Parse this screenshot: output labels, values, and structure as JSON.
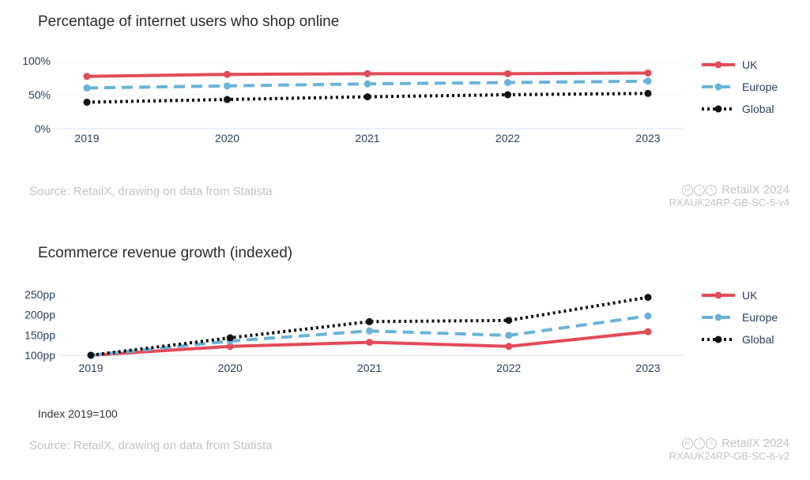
{
  "colors": {
    "uk": "#e34a58",
    "europe": "#6bb3d9",
    "global": "#111111"
  },
  "charts": [
    {
      "title": "Percentage of internet users who shop online",
      "source": "Source: RetailX, drawing on data from Statista",
      "brand": "RetailX 2024",
      "code": "RXAUK24RP-GB-SC-5-v4",
      "cc_icons": [
        "cc",
        "i",
        "="
      ]
    },
    {
      "title": "Ecommerce revenue growth (indexed)",
      "note": "Index 2019=100",
      "source": "Source: RetailX, drawing on data from Statista",
      "brand": "RetailX 2024",
      "code": "RXAUK24RP-GB-SC-6-v2",
      "cc_icons": [
        "cc",
        "i",
        "="
      ]
    }
  ],
  "chart_data": [
    {
      "type": "line",
      "title": "Percentage of internet users who shop online",
      "categories": [
        "2019",
        "2020",
        "2021",
        "2022",
        "2023"
      ],
      "series": [
        {
          "name": "UK",
          "values": [
            77,
            80,
            81,
            81,
            82
          ],
          "style": "solid",
          "color": "#e34a58"
        },
        {
          "name": "Europe",
          "values": [
            60,
            63,
            66,
            68,
            70
          ],
          "style": "dashed",
          "color": "#6bb3d9"
        },
        {
          "name": "Global",
          "values": [
            39,
            43,
            47,
            50,
            52
          ],
          "style": "dotted",
          "color": "#111111"
        }
      ],
      "ylim": [
        0,
        100
      ],
      "yticks": [
        0,
        50,
        100
      ],
      "ytick_labels": [
        "0%",
        "50%",
        "100%"
      ],
      "legend": "right"
    },
    {
      "type": "line",
      "title": "Ecommerce revenue growth (indexed)",
      "categories": [
        "2019",
        "2020",
        "2021",
        "2022",
        "2023"
      ],
      "series": [
        {
          "name": "UK",
          "values": [
            100,
            122,
            132,
            122,
            158
          ],
          "style": "solid",
          "color": "#e34a58"
        },
        {
          "name": "Europe",
          "values": [
            100,
            135,
            160,
            149,
            197
          ],
          "style": "dashed",
          "color": "#6bb3d9"
        },
        {
          "name": "Global",
          "values": [
            100,
            143,
            183,
            186,
            243
          ],
          "style": "dotted",
          "color": "#111111"
        }
      ],
      "ylim": [
        100,
        250
      ],
      "yticks": [
        100,
        150,
        200,
        250
      ],
      "ytick_labels": [
        "100pp",
        "150pp",
        "200pp",
        "250pp"
      ],
      "legend": "right"
    }
  ]
}
